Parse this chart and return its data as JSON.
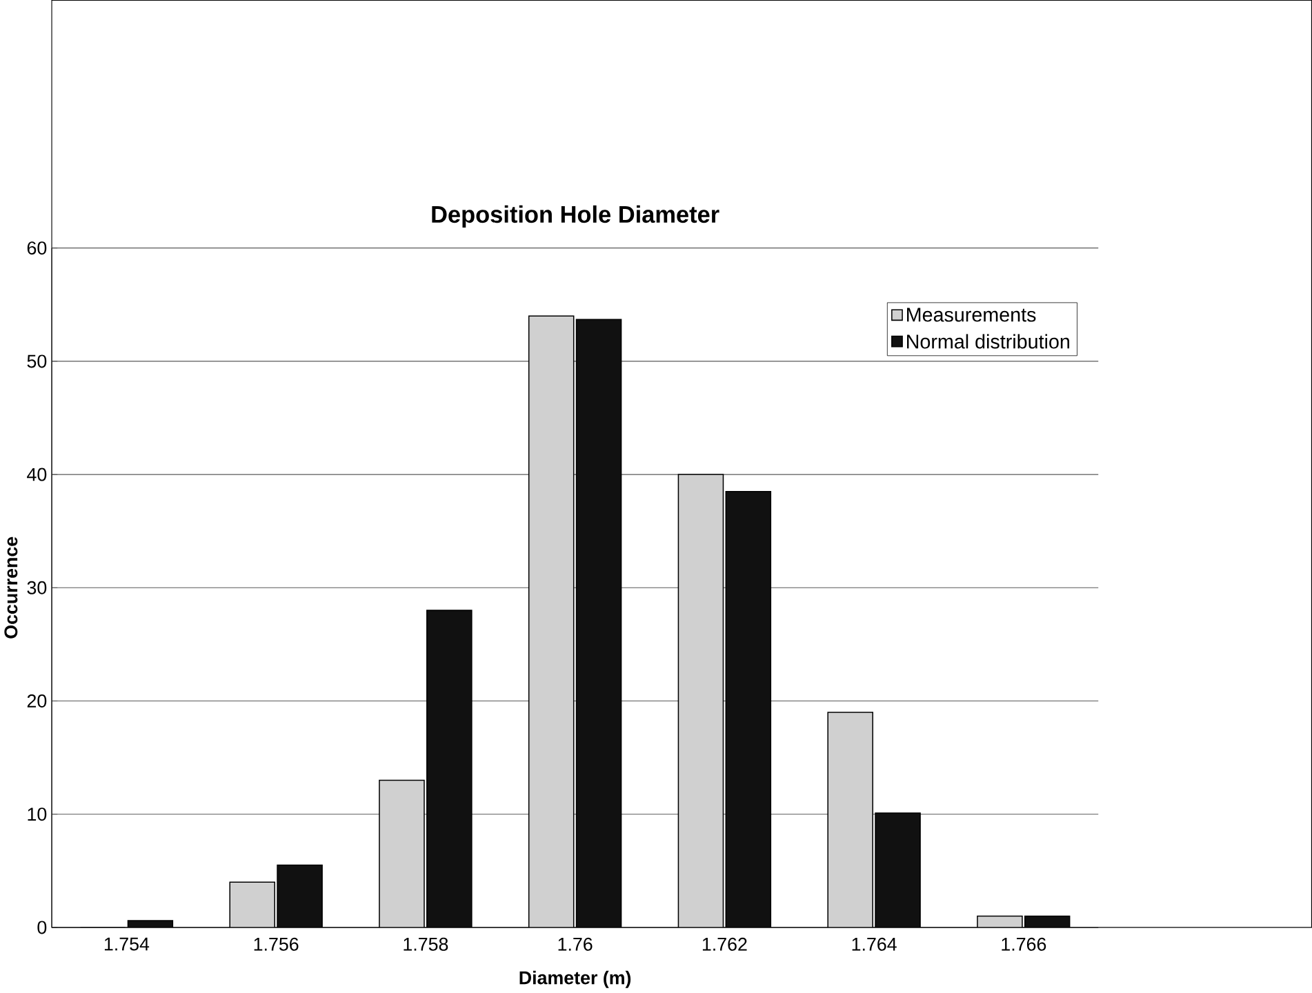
{
  "chart_data": {
    "type": "bar",
    "title": "Deposition Hole Diameter",
    "xlabel": "Diameter (m)",
    "ylabel": "Occurrence",
    "categories": [
      "1.754",
      "1.756",
      "1.758",
      "1.76",
      "1.762",
      "1.764",
      "1.766"
    ],
    "series": [
      {
        "name": "Measurements",
        "color": "#d0d0d0",
        "values": [
          0,
          4,
          13,
          54,
          40,
          19,
          1
        ]
      },
      {
        "name": "Normal distribution",
        "color": "#111111",
        "values": [
          0.6,
          5.5,
          28,
          53.7,
          38.5,
          10.1,
          1
        ]
      }
    ],
    "ylim": [
      0,
      60
    ],
    "yticks": [
      0,
      10,
      20,
      30,
      40,
      50,
      60
    ],
    "grid": "y",
    "legend": "top right"
  }
}
